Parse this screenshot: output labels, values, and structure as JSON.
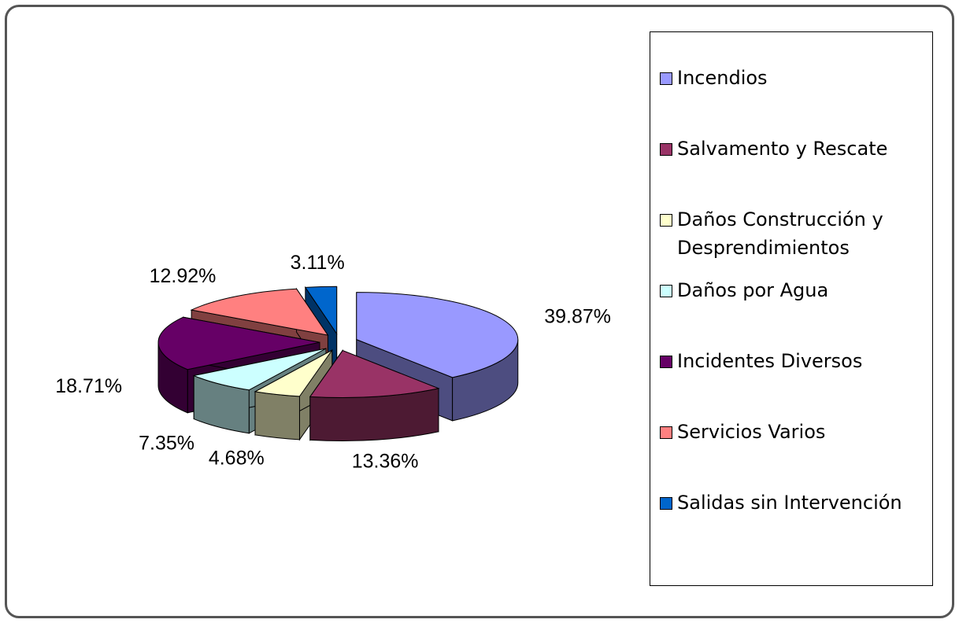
{
  "chart_data": {
    "type": "pie",
    "categories": [
      "Incendios",
      "Salvamento y Rescate",
      "Daños Construcción y Desprendimientos",
      "Daños por Agua",
      "Incidentes Diversos",
      "Servicios Varios",
      "Salidas sin Intervención"
    ],
    "values": [
      39.87,
      13.36,
      4.68,
      7.35,
      18.71,
      12.92,
      3.11
    ],
    "value_labels": [
      "39.87%",
      "13.36%",
      "4.68%",
      "7.35%",
      "18.71%",
      "12.92%",
      "3.11%"
    ],
    "colors": [
      "#9999ff",
      "#993366",
      "#ffffcc",
      "#ccffff",
      "#660066",
      "#ff8080",
      "#0066cc"
    ],
    "legend": "right"
  }
}
